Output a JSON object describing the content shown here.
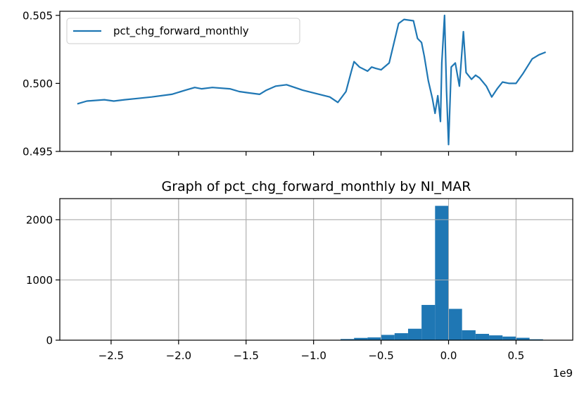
{
  "chart_data": [
    {
      "type": "line",
      "legend": {
        "entries": [
          "pct_chg_forward_monthly"
        ],
        "position": "top-left"
      },
      "series": [
        {
          "name": "pct_chg_forward_monthly",
          "color": "#1f77b4",
          "points": [
            [
              -2.75,
              0.4985
            ],
            [
              -2.68,
              0.4987
            ],
            [
              -2.55,
              0.4988
            ],
            [
              -2.48,
              0.4987
            ],
            [
              -2.4,
              0.4988
            ],
            [
              -2.3,
              0.4989
            ],
            [
              -2.2,
              0.499
            ],
            [
              -2.05,
              0.4992
            ],
            [
              -1.95,
              0.4995
            ],
            [
              -1.88,
              0.4997
            ],
            [
              -1.83,
              0.4996
            ],
            [
              -1.75,
              0.4997
            ],
            [
              -1.62,
              0.4996
            ],
            [
              -1.55,
              0.4994
            ],
            [
              -1.48,
              0.4993
            ],
            [
              -1.4,
              0.4992
            ],
            [
              -1.35,
              0.4995
            ],
            [
              -1.28,
              0.4998
            ],
            [
              -1.2,
              0.4999
            ],
            [
              -1.08,
              0.4995
            ],
            [
              -1.0,
              0.4993
            ],
            [
              -0.88,
              0.499
            ],
            [
              -0.82,
              0.4986
            ],
            [
              -0.76,
              0.4994
            ],
            [
              -0.72,
              0.5009
            ],
            [
              -0.7,
              0.5016
            ],
            [
              -0.66,
              0.5012
            ],
            [
              -0.6,
              0.5009
            ],
            [
              -0.57,
              0.5012
            ],
            [
              -0.54,
              0.5011
            ],
            [
              -0.5,
              0.501
            ],
            [
              -0.44,
              0.5015
            ],
            [
              -0.37,
              0.5044
            ],
            [
              -0.33,
              0.5047
            ],
            [
              -0.26,
              0.5046
            ],
            [
              -0.23,
              0.5033
            ],
            [
              -0.2,
              0.503
            ],
            [
              -0.18,
              0.502
            ],
            [
              -0.15,
              0.5002
            ],
            [
              -0.12,
              0.4989
            ],
            [
              -0.1,
              0.4978
            ],
            [
              -0.08,
              0.4991
            ],
            [
              -0.06,
              0.4972
            ],
            [
              -0.05,
              0.5015
            ],
            [
              -0.03,
              0.505
            ],
            [
              -0.015,
              0.4995
            ],
            [
              0.0,
              0.4955
            ],
            [
              0.02,
              0.5012
            ],
            [
              0.05,
              0.5015
            ],
            [
              0.08,
              0.4998
            ],
            [
              0.11,
              0.5038
            ],
            [
              0.13,
              0.5008
            ],
            [
              0.17,
              0.5003
            ],
            [
              0.2,
              0.5006
            ],
            [
              0.23,
              0.5004
            ],
            [
              0.28,
              0.4998
            ],
            [
              0.32,
              0.499
            ],
            [
              0.36,
              0.4996
            ],
            [
              0.4,
              0.5001
            ],
            [
              0.45,
              0.5
            ],
            [
              0.5,
              0.5
            ],
            [
              0.55,
              0.5007
            ],
            [
              0.62,
              0.5018
            ],
            [
              0.67,
              0.5021
            ],
            [
              0.72,
              0.5023
            ]
          ]
        }
      ],
      "xlim": [
        -2.88,
        0.92
      ],
      "ylim": [
        0.495,
        0.5053
      ],
      "yticks": [
        "0.495",
        "0.500",
        "0.505"
      ],
      "grid": false
    },
    {
      "type": "bar",
      "title": "Graph of pct_chg_forward_monthly by NI_MAR",
      "color": "#1f77b4",
      "bin_width": 0.1,
      "bins": [
        [
          -0.9,
          4
        ],
        [
          -0.8,
          19
        ],
        [
          -0.7,
          38
        ],
        [
          -0.6,
          46
        ],
        [
          -0.5,
          88
        ],
        [
          -0.4,
          116
        ],
        [
          -0.3,
          190
        ],
        [
          -0.2,
          585
        ],
        [
          -0.1,
          2230
        ],
        [
          0.0,
          520
        ],
        [
          0.1,
          165
        ],
        [
          0.2,
          105
        ],
        [
          0.3,
          80
        ],
        [
          0.4,
          60
        ],
        [
          0.5,
          40
        ],
        [
          0.6,
          15
        ]
      ],
      "xlim": [
        -2.88,
        0.92
      ],
      "ylim": [
        0,
        2350
      ],
      "xticks": [
        "−2.5",
        "−2.0",
        "−1.5",
        "−1.0",
        "−0.5",
        "0.0",
        "0.5"
      ],
      "yticks": [
        "0",
        "1000",
        "2000"
      ],
      "x_offset_label": "1e9",
      "grid": true
    }
  ]
}
